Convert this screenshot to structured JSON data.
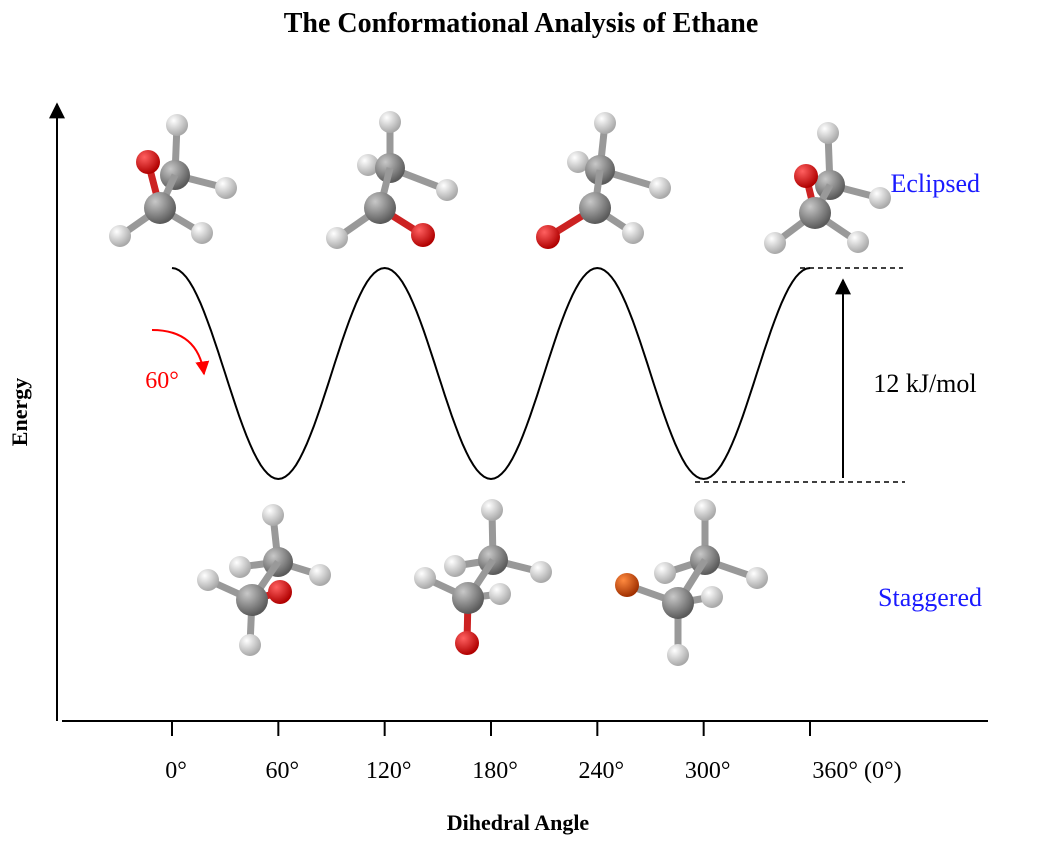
{
  "title": "The Conformational Analysis of Ethane",
  "y_axis": {
    "label": "Energy"
  },
  "x_axis": {
    "label": "Dihedral Angle",
    "ticks": [
      {
        "value": 0,
        "label": "0°"
      },
      {
        "value": 60,
        "label": "60°"
      },
      {
        "value": 120,
        "label": "120°"
      },
      {
        "value": 180,
        "label": "180°"
      },
      {
        "value": 240,
        "label": "240°"
      },
      {
        "value": 300,
        "label": "300°"
      },
      {
        "value": 360,
        "label": "360° (0°)"
      }
    ]
  },
  "labels": {
    "eclipsed": "Eclipsed",
    "staggered": "Staggered",
    "barrier": "12 kJ/mol",
    "rotation": "60°"
  }
}
